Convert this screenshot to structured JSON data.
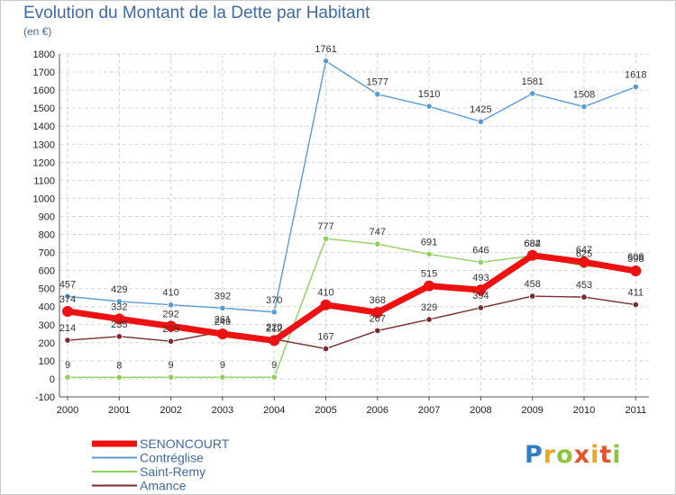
{
  "chart_data": {
    "type": "line",
    "title": "Evolution du Montant de la Dette par Habitant",
    "subtitle": "(en €)",
    "x": [
      "2000",
      "2001",
      "2002",
      "2003",
      "2004",
      "2005",
      "2006",
      "2007",
      "2008",
      "2009",
      "2010",
      "2011"
    ],
    "ylim": [
      -100,
      1800
    ],
    "yticks": [
      -100,
      0,
      100,
      200,
      300,
      400,
      500,
      600,
      700,
      800,
      900,
      1000,
      1100,
      1200,
      1300,
      1400,
      1500,
      1600,
      1700,
      1800
    ],
    "grid": true,
    "legend_position": "bottom-left",
    "series": [
      {
        "name": "SENONCOURT",
        "color": "#ee1111",
        "values": [
          374,
          332,
          292,
          249,
          212,
          410,
          368,
          515,
          493,
          684,
          647,
          598
        ]
      },
      {
        "name": "Contréglise",
        "color": "#5b9bd5",
        "values": [
          457,
          429,
          410,
          392,
          370,
          1761,
          1577,
          1510,
          1425,
          1581,
          1508,
          1618
        ]
      },
      {
        "name": "Saint-Remy",
        "color": "#8fd15b",
        "values": [
          9,
          8,
          9,
          9,
          9,
          777,
          747,
          691,
          646,
          682,
          625,
          608
        ]
      },
      {
        "name": "Amance",
        "color": "#7a2a2a",
        "values": [
          214,
          235,
          208,
          261,
          220,
          167,
          267,
          329,
          394,
          458,
          453,
          411
        ]
      }
    ]
  },
  "logo_text": "Proxiti"
}
